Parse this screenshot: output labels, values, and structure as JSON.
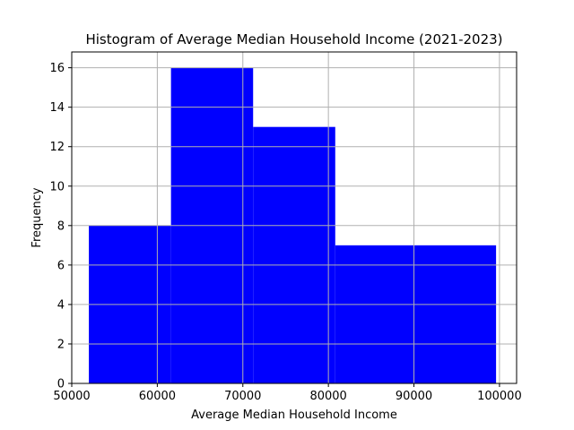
{
  "chart_data": {
    "type": "bar",
    "title": "Histogram of Average Median Household Income (2021-2023)",
    "xlabel": "Average Median Household Income",
    "ylabel": "Frequency",
    "xlim": [
      50000,
      102000
    ],
    "ylim": [
      0,
      16.8
    ],
    "xticks": [
      50000,
      60000,
      70000,
      80000,
      90000,
      100000
    ],
    "yticks": [
      0,
      2,
      4,
      6,
      8,
      10,
      12,
      14,
      16
    ],
    "bins": [
      {
        "start": 52000,
        "end": 61600,
        "count": 8
      },
      {
        "start": 61600,
        "end": 71200,
        "count": 16
      },
      {
        "start": 71200,
        "end": 80800,
        "count": 13
      },
      {
        "start": 80800,
        "end": 99600,
        "count": 7
      }
    ],
    "bar_color": "#0000ff",
    "grid": true,
    "grid_color": "#b0b0b0"
  }
}
